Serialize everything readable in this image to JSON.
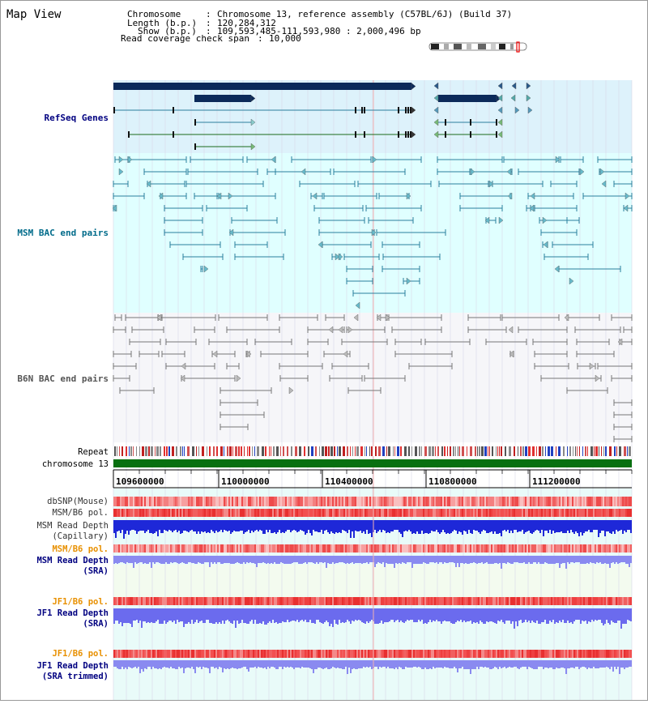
{
  "view_title": "Map View",
  "info": {
    "chromosome_key": "Chromosome",
    "chromosome_value": "Chromosome 13, reference assembly (C57BL/6J) (Build 37)",
    "length_key": "Length (b.p.)",
    "length_value": "120,284,312",
    "show_key": "Show (b.p.)",
    "show_value": "109,593,485-111,593,980 : 2,000,496 bp",
    "coverage_key": "Read coverage check span",
    "coverage_value": "10,000"
  },
  "tracks": {
    "refseq": "RefSeq Genes",
    "msm_bac": "MSM BAC end pairs",
    "b6n_bac": "B6N BAC end pairs",
    "repeat": "Repeat",
    "chromosome": "chromosome 13",
    "dbsnp": "dbSNP(Mouse)",
    "msm_b6_pol": "MSM/B6 pol.",
    "msm_read_depth_cap_1": "MSM Read Depth",
    "msm_read_depth_cap_2": "(Capillary)",
    "msm_b6_pol_sra": "MSM/B6 pol.",
    "msm_read_depth_sra_1": "MSM Read Depth",
    "msm_read_depth_sra_2": "(SRA)",
    "jf1_b6_pol": "JF1/B6 pol.",
    "jf1_read_depth_sra_1": "JF1 Read Depth",
    "jf1_read_depth_sra_2": "(SRA)",
    "jf1_b6_pol_trim": "JF1/B6 pol.",
    "jf1_read_depth_trim_1": "JF1 Read Depth",
    "jf1_read_depth_trim_2": "(SRA trimmed)"
  },
  "axis": {
    "ticks": [
      "109600000",
      "110000000",
      "110400000",
      "110800000",
      "111200000"
    ]
  },
  "colors": {
    "refseq_bg": "#ddf2fb",
    "msm_bg": "#e0ffff",
    "b6n_bg": "#f5f5f8",
    "track_bg": "#e8fbf8",
    "gene_dark": "#0b2a5a",
    "msm_line": "#2a7f9e",
    "b6n_line": "#777777",
    "chrom_green": "#087010",
    "depth_blue": "#2222dd",
    "depth_light": "#8a8af0",
    "pol_red": "#f04848",
    "label_blue": "#000080",
    "label_teal": "#006b8a",
    "label_orange": "#e89000"
  }
}
